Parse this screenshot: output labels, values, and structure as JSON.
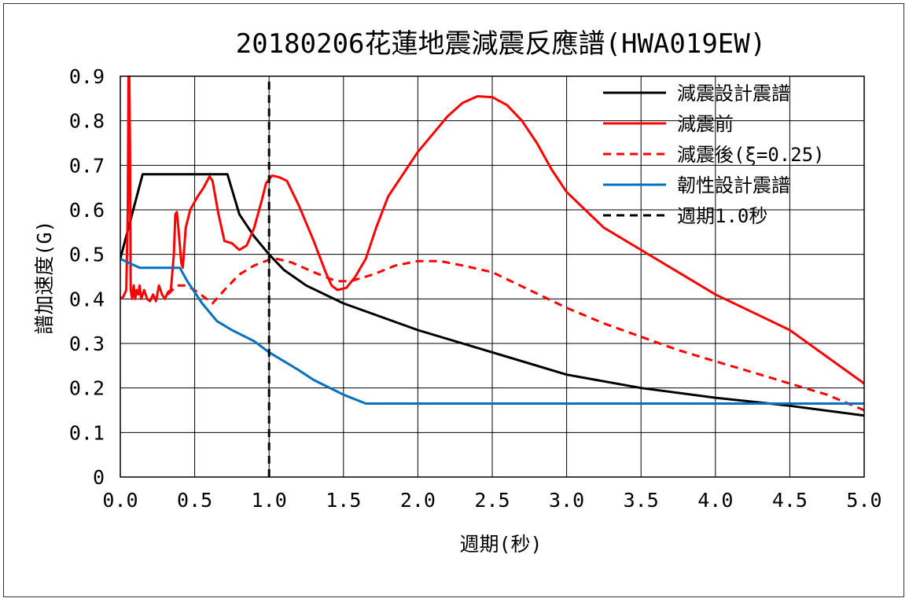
{
  "chart_data": {
    "type": "line",
    "title": "20180206花蓮地震減震反應譜(HWA019EW)",
    "xlabel": "週期(秒)",
    "ylabel": "譜加速度(G)",
    "xlim": [
      0,
      5
    ],
    "ylim": [
      0,
      0.9
    ],
    "xticks": [
      0,
      0.5,
      1,
      1.5,
      2,
      2.5,
      3,
      3.5,
      4,
      4.5,
      5
    ],
    "xtick_labels": [
      "0.0",
      "0.5",
      "1.0",
      "1.5",
      "2.0",
      "2.5",
      "3.0",
      "3.5",
      "4.0",
      "4.5",
      "5.0"
    ],
    "yticks": [
      0,
      0.1,
      0.2,
      0.3,
      0.4,
      0.5,
      0.6,
      0.7,
      0.8,
      0.9
    ],
    "ytick_labels": [
      "0",
      "0.1",
      "0.2",
      "0.3",
      "0.4",
      "0.5",
      "0.6",
      "0.7",
      "0.8",
      "0.9"
    ],
    "grid": true,
    "legend_position": "top-right",
    "series": [
      {
        "name": "減震設計震譜",
        "color": "#000000",
        "dash": "solid",
        "points": [
          [
            0,
            0.49
          ],
          [
            0.15,
            0.68
          ],
          [
            0.72,
            0.68
          ],
          [
            0.8,
            0.59
          ],
          [
            0.9,
            0.54
          ],
          [
            1.0,
            0.5
          ],
          [
            1.1,
            0.465
          ],
          [
            1.25,
            0.43
          ],
          [
            1.5,
            0.39
          ],
          [
            1.75,
            0.36
          ],
          [
            2.0,
            0.33
          ],
          [
            2.5,
            0.28
          ],
          [
            3.0,
            0.23
          ],
          [
            3.5,
            0.2
          ],
          [
            4.0,
            0.178
          ],
          [
            4.5,
            0.16
          ],
          [
            5.0,
            0.138
          ]
        ]
      },
      {
        "name": "減震前",
        "color": "#ff0000",
        "dash": "solid",
        "points": [
          [
            0,
            0.4
          ],
          [
            0.02,
            0.405
          ],
          [
            0.04,
            0.42
          ],
          [
            0.05,
            0.6
          ],
          [
            0.055,
            0.9
          ],
          [
            0.06,
            0.9
          ],
          [
            0.065,
            0.75
          ],
          [
            0.07,
            0.42
          ],
          [
            0.08,
            0.4
          ],
          [
            0.09,
            0.43
          ],
          [
            0.1,
            0.4
          ],
          [
            0.11,
            0.42
          ],
          [
            0.12,
            0.41
          ],
          [
            0.13,
            0.43
          ],
          [
            0.14,
            0.4
          ],
          [
            0.16,
            0.42
          ],
          [
            0.18,
            0.4
          ],
          [
            0.2,
            0.395
          ],
          [
            0.22,
            0.41
          ],
          [
            0.24,
            0.395
          ],
          [
            0.26,
            0.43
          ],
          [
            0.28,
            0.41
          ],
          [
            0.3,
            0.4
          ],
          [
            0.32,
            0.415
          ],
          [
            0.34,
            0.42
          ],
          [
            0.36,
            0.5
          ],
          [
            0.37,
            0.59
          ],
          [
            0.38,
            0.595
          ],
          [
            0.39,
            0.56
          ],
          [
            0.41,
            0.48
          ],
          [
            0.42,
            0.47
          ],
          [
            0.44,
            0.56
          ],
          [
            0.47,
            0.6
          ],
          [
            0.52,
            0.63
          ],
          [
            0.56,
            0.65
          ],
          [
            0.6,
            0.675
          ],
          [
            0.62,
            0.665
          ],
          [
            0.66,
            0.59
          ],
          [
            0.7,
            0.53
          ],
          [
            0.75,
            0.525
          ],
          [
            0.8,
            0.51
          ],
          [
            0.85,
            0.52
          ],
          [
            0.9,
            0.56
          ],
          [
            0.95,
            0.62
          ],
          [
            0.98,
            0.66
          ],
          [
            1.02,
            0.677
          ],
          [
            1.07,
            0.673
          ],
          [
            1.12,
            0.665
          ],
          [
            1.2,
            0.61
          ],
          [
            1.3,
            0.53
          ],
          [
            1.38,
            0.46
          ],
          [
            1.42,
            0.43
          ],
          [
            1.46,
            0.42
          ],
          [
            1.52,
            0.425
          ],
          [
            1.58,
            0.45
          ],
          [
            1.65,
            0.49
          ],
          [
            1.72,
            0.56
          ],
          [
            1.8,
            0.63
          ],
          [
            1.9,
            0.68
          ],
          [
            2.0,
            0.73
          ],
          [
            2.1,
            0.77
          ],
          [
            2.2,
            0.81
          ],
          [
            2.3,
            0.84
          ],
          [
            2.4,
            0.855
          ],
          [
            2.5,
            0.853
          ],
          [
            2.6,
            0.835
          ],
          [
            2.7,
            0.8
          ],
          [
            2.8,
            0.75
          ],
          [
            2.9,
            0.69
          ],
          [
            3.0,
            0.64
          ],
          [
            3.25,
            0.56
          ],
          [
            3.5,
            0.51
          ],
          [
            3.75,
            0.46
          ],
          [
            4.0,
            0.41
          ],
          [
            4.25,
            0.37
          ],
          [
            4.5,
            0.33
          ],
          [
            4.75,
            0.27
          ],
          [
            5.0,
            0.21
          ]
        ]
      },
      {
        "name": "減震後(ξ=0.25)",
        "color": "#ff0000",
        "dash": "dashed",
        "points": [
          [
            0.32,
            0.41
          ],
          [
            0.38,
            0.43
          ],
          [
            0.45,
            0.43
          ],
          [
            0.52,
            0.415
          ],
          [
            0.58,
            0.4
          ],
          [
            0.62,
            0.39
          ],
          [
            0.7,
            0.42
          ],
          [
            0.8,
            0.455
          ],
          [
            0.9,
            0.475
          ],
          [
            1.0,
            0.488
          ],
          [
            1.05,
            0.49
          ],
          [
            1.15,
            0.482
          ],
          [
            1.3,
            0.46
          ],
          [
            1.45,
            0.44
          ],
          [
            1.55,
            0.44
          ],
          [
            1.7,
            0.455
          ],
          [
            1.85,
            0.475
          ],
          [
            2.0,
            0.485
          ],
          [
            2.15,
            0.485
          ],
          [
            2.3,
            0.475
          ],
          [
            2.5,
            0.46
          ],
          [
            2.75,
            0.42
          ],
          [
            3.0,
            0.38
          ],
          [
            3.25,
            0.345
          ],
          [
            3.5,
            0.315
          ],
          [
            3.75,
            0.285
          ],
          [
            4.0,
            0.26
          ],
          [
            4.25,
            0.235
          ],
          [
            4.5,
            0.21
          ],
          [
            4.75,
            0.185
          ],
          [
            5.0,
            0.15
          ]
        ]
      },
      {
        "name": "韌性設計震譜",
        "color": "#0070c0",
        "dash": "solid",
        "points": [
          [
            0,
            0.49
          ],
          [
            0.13,
            0.47
          ],
          [
            0.4,
            0.47
          ],
          [
            0.45,
            0.44
          ],
          [
            0.55,
            0.39
          ],
          [
            0.65,
            0.35
          ],
          [
            0.75,
            0.33
          ],
          [
            0.9,
            0.305
          ],
          [
            1.0,
            0.28
          ],
          [
            1.2,
            0.24
          ],
          [
            1.3,
            0.218
          ],
          [
            1.5,
            0.185
          ],
          [
            1.65,
            0.165
          ],
          [
            2.0,
            0.165
          ],
          [
            3.0,
            0.165
          ],
          [
            4.0,
            0.165
          ],
          [
            5.0,
            0.165
          ]
        ]
      },
      {
        "name": "週期1.0秒",
        "color": "#000000",
        "dash": "dashed",
        "points": [
          [
            1.0,
            0
          ],
          [
            1.0,
            0.9
          ]
        ]
      }
    ]
  }
}
